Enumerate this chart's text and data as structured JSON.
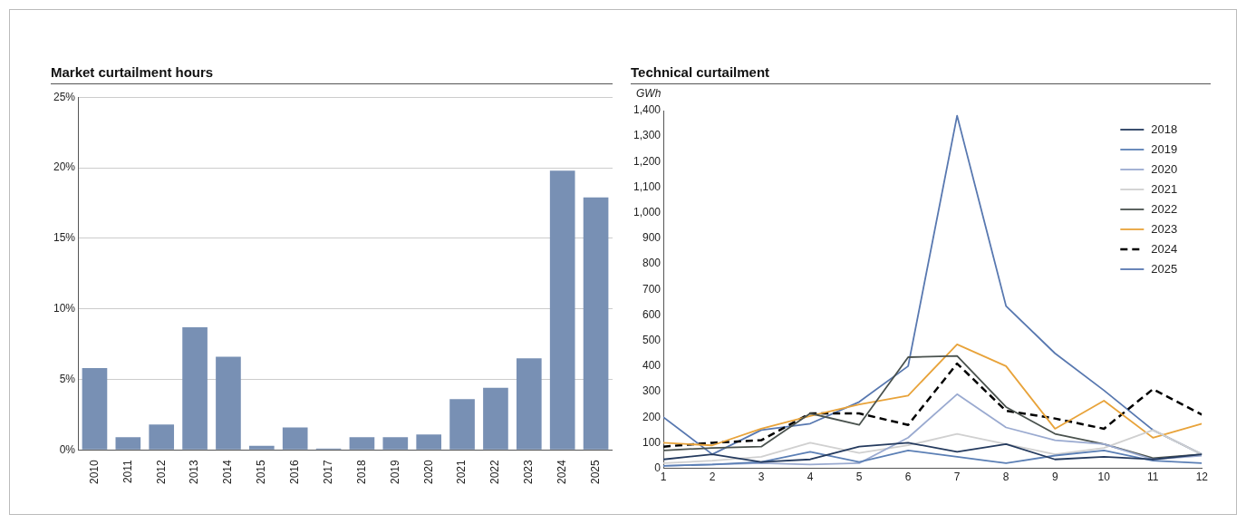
{
  "chart_data": [
    {
      "type": "bar",
      "title": "Market curtailment hours",
      "categories": [
        "2010",
        "2011",
        "2012",
        "2013",
        "2014",
        "2015",
        "2016",
        "2017",
        "2018",
        "2019",
        "2020",
        "2021",
        "2022",
        "2023",
        "2024",
        "2025"
      ],
      "values": [
        5.8,
        0.9,
        1.8,
        8.7,
        6.6,
        0.3,
        1.6,
        0.1,
        0.9,
        0.9,
        1.1,
        3.6,
        4.4,
        6.5,
        19.8,
        17.9
      ],
      "color": "#7890b4",
      "ylim": [
        0,
        25
      ],
      "yticks": [
        {
          "value": 0,
          "label": "0%"
        },
        {
          "value": 5,
          "label": "5%"
        },
        {
          "value": 10,
          "label": "10%"
        },
        {
          "value": 15,
          "label": "15%"
        },
        {
          "value": 20,
          "label": "20%"
        },
        {
          "value": 25,
          "label": "25%"
        }
      ],
      "grid": "y",
      "legend": false
    },
    {
      "type": "line",
      "title": "Technical curtailment",
      "ylabel": "GWh",
      "x": [
        1,
        2,
        3,
        4,
        5,
        6,
        7,
        8,
        9,
        10,
        11,
        12
      ],
      "series": [
        {
          "name": "2018",
          "color": "#243a5e",
          "values": [
            35,
            55,
            25,
            35,
            85,
            100,
            65,
            95,
            35,
            45,
            35,
            55
          ]
        },
        {
          "name": "2019",
          "color": "#5b7fb5",
          "values": [
            10,
            15,
            25,
            65,
            25,
            70,
            45,
            20,
            50,
            70,
            30,
            20
          ]
        },
        {
          "name": "2020",
          "color": "#9aaad0",
          "values": [
            10,
            15,
            20,
            15,
            20,
            120,
            290,
            160,
            110,
            95,
            35,
            50
          ]
        },
        {
          "name": "2021",
          "color": "#d0d0d0",
          "values": [
            20,
            30,
            45,
            100,
            60,
            90,
            135,
            95,
            55,
            80,
            150,
            55
          ]
        },
        {
          "name": "2022",
          "color": "#4a524e",
          "values": [
            70,
            80,
            85,
            215,
            170,
            435,
            440,
            240,
            135,
            95,
            40,
            55
          ]
        },
        {
          "name": "2023",
          "color": "#e8a33a",
          "values": [
            100,
            90,
            155,
            205,
            250,
            285,
            485,
            400,
            155,
            265,
            120,
            175
          ]
        },
        {
          "name": "2024",
          "color": "#000000",
          "line_style": "dashed",
          "values": [
            85,
            100,
            110,
            215,
            215,
            170,
            410,
            225,
            195,
            155,
            310,
            210
          ]
        },
        {
          "name": "2025",
          "color": "#5878b0",
          "values": [
            200,
            55,
            150,
            175,
            260,
            400,
            1380,
            635,
            450,
            305,
            150,
            55
          ]
        }
      ],
      "xlim": [
        1,
        12
      ],
      "xticks": [
        1,
        2,
        3,
        4,
        5,
        6,
        7,
        8,
        9,
        10,
        11,
        12
      ],
      "ylim": [
        0,
        1400
      ],
      "yticks": [
        0,
        100,
        200,
        300,
        400,
        500,
        600,
        700,
        800,
        900,
        {
          "value": 1000,
          "label": "1,000"
        },
        {
          "value": 1100,
          "label": "1,100"
        },
        {
          "value": 1200,
          "label": "1,200"
        },
        {
          "value": 1300,
          "label": "1,300"
        },
        {
          "value": 1400,
          "label": "1,400"
        }
      ],
      "grid": false,
      "legend": "top right",
      "marker": "none",
      "line_style": "solid"
    }
  ]
}
